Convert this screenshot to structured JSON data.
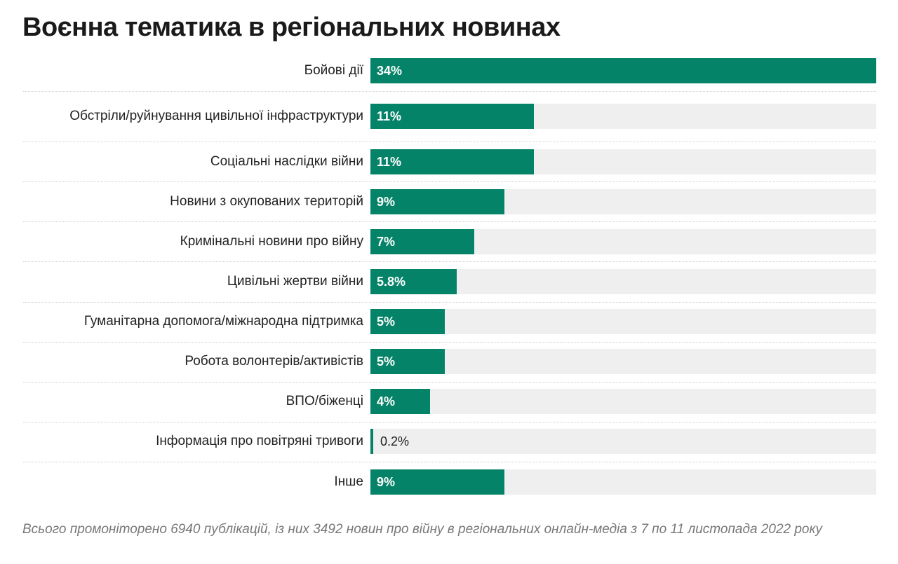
{
  "title": "Воєнна тематика в регіональних новинах",
  "chart_data": {
    "type": "bar",
    "orientation": "horizontal",
    "title": "Воєнна тематика в регіональних новинах",
    "xlim": [
      0,
      34
    ],
    "bar_color": "#058369",
    "track_color": "#efefef",
    "categories": [
      "Бойові дії",
      "Обстріли/руйнування цивільної інфраструктури",
      "Соціальні наслідки війни",
      "Новини з окупованих територій",
      "Кримінальні новини про війну",
      "Цивільні жертви війни",
      "Гуманітарна допомога/міжнародна підтримка",
      "Робота волонтерів/активістів",
      "ВПО/біженці",
      "Інформація про повітряні тривоги",
      "Інше"
    ],
    "values": [
      34,
      11,
      11,
      9,
      7,
      5.8,
      5,
      5,
      4,
      0.2,
      9
    ],
    "value_labels": [
      "34%",
      "11%",
      "11%",
      "9%",
      "7%",
      "5.8%",
      "5%",
      "5%",
      "4%",
      "0.2%",
      "9%"
    ]
  },
  "note": "Всього промоніторено 6940 публікацій, із них 3492 новин про війну в регіональних онлайн-медіа з 7 по 11 листопада 2022 року"
}
